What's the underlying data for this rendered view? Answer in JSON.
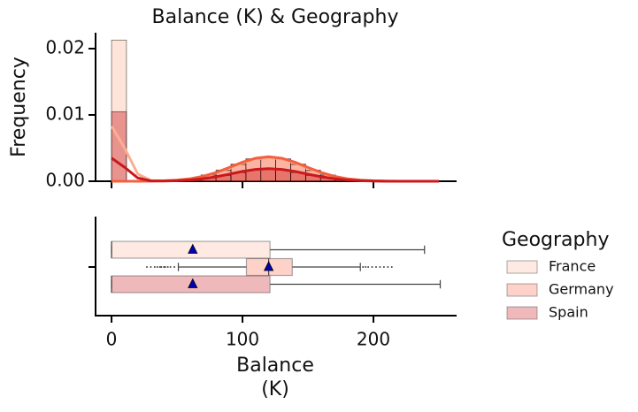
{
  "chart_data": [
    {
      "type": "histogram",
      "title": "Balance (K) & Geography",
      "ylabel": "Frequency",
      "bins": [
        0,
        11.4,
        22.8,
        34.2,
        45.6,
        57,
        68.4,
        79.8,
        91.2,
        102.6,
        114,
        125.4,
        136.8,
        148.2,
        159.6,
        171,
        182.4,
        193.8,
        205.2,
        216.6,
        228,
        239.4,
        250.8
      ],
      "series": [
        {
          "name": "France",
          "color": "#fcbba1",
          "line_color": "#fcae91",
          "values": [
            0.0213,
            0,
            0,
            5e-05,
            0.00018,
            0.00044,
            0.00092,
            0.0016,
            0.0025,
            0.0033,
            0.0036,
            0.0033,
            0.0025,
            0.0016,
            0.00092,
            0.00044,
            0.00018,
            6e-05,
            2e-05,
            0,
            0,
            0
          ],
          "kde": {
            "x": [
              0,
              10,
              20,
              30,
              40,
              50,
              60,
              70,
              80,
              90,
              100,
              110,
              120,
              130,
              140,
              150,
              160,
              170,
              180,
              190,
              200,
              210,
              220,
              230,
              240,
              250
            ],
            "values": [
              0.0083,
              0.005,
              0.0011,
              0.00012,
              6e-05,
              0.00016,
              0.00036,
              0.00073,
              0.00129,
              0.00202,
              0.00278,
              0.00337,
              0.00359,
              0.00337,
              0.00278,
              0.00202,
              0.00129,
              0.00073,
              0.00036,
              0.00016,
              6e-05,
              2e-05,
              0,
              0,
              0,
              0
            ]
          }
        },
        {
          "name": "Germany",
          "color": "#fb6a4a",
          "line_color": "#f4603f",
          "values": [
            0,
            0,
            1e-05,
            5e-05,
            0.00019,
            0.00045,
            0.00095,
            0.0017,
            0.0026,
            0.0034,
            0.0037,
            0.0034,
            0.0026,
            0.0017,
            0.00095,
            0.00045,
            0.00019,
            6e-05,
            2e-05,
            0,
            0,
            0
          ],
          "kde": {
            "x": [
              0,
              10,
              20,
              30,
              40,
              50,
              60,
              70,
              80,
              90,
              100,
              110,
              120,
              130,
              140,
              150,
              160,
              170,
              180,
              190,
              200,
              210,
              220,
              230,
              240,
              250
            ],
            "values": [
              0,
              0,
              0,
              2e-05,
              6e-05,
              0.00016,
              0.00037,
              0.00075,
              0.00133,
              0.00208,
              0.00287,
              0.00347,
              0.0037,
              0.00347,
              0.00287,
              0.00208,
              0.00133,
              0.00075,
              0.00037,
              0.00016,
              6e-05,
              2e-05,
              0,
              0,
              0,
              0
            ]
          }
        },
        {
          "name": "Spain",
          "color": "#cb181d",
          "line_color": "#cb181d",
          "values": [
            0.0105,
            0,
            0,
            2e-05,
            0.0001,
            0.00023,
            0.00049,
            0.00087,
            0.0013,
            0.0017,
            0.0019,
            0.0017,
            0.0013,
            0.00087,
            0.00049,
            0.00023,
            0.0001,
            3e-05,
            1e-05,
            0,
            0,
            0
          ],
          "kde": {
            "x": [
              0,
              10,
              20,
              30,
              40,
              50,
              60,
              70,
              80,
              90,
              100,
              110,
              120,
              130,
              140,
              150,
              160,
              170,
              180,
              190,
              200,
              210,
              220,
              230,
              240,
              250
            ],
            "values": [
              0.0035,
              0.0021,
              0.0005,
              5e-05,
              3e-05,
              8e-05,
              0.00019,
              0.00039,
              0.00068,
              0.00107,
              0.00148,
              0.00178,
              0.0019,
              0.00178,
              0.00148,
              0.00107,
              0.00068,
              0.00039,
              0.00019,
              8e-05,
              3e-05,
              0,
              0,
              0,
              0,
              0
            ]
          }
        }
      ],
      "xlim": [
        -12.2,
        263.5
      ],
      "xticks": [
        0,
        100,
        200
      ],
      "ylim": [
        0,
        0.0224
      ],
      "yticks": [
        {
          "value": 0,
          "label": "0.00"
        },
        {
          "value": 0.01,
          "label": "0.01"
        },
        {
          "value": 0.02,
          "label": "0.02"
        }
      ]
    },
    {
      "type": "box",
      "xlabel": [
        "Balance",
        "(K)"
      ],
      "xlim": [
        -12.2,
        263.5
      ],
      "xticks": [
        0,
        100,
        200
      ],
      "mean_color": "#0000b0",
      "legend": {
        "title": "Geography",
        "position": "outside right"
      },
      "series": [
        {
          "color": "#fcbba1",
          "whislo": 0,
          "q1": 0,
          "median": 0,
          "q3": 121,
          "whishi": 239,
          "mean": 62,
          "fliers": []
        },
        {
          "color": "#fb6a4a",
          "whislo": 51,
          "q1": 103,
          "median": 120,
          "q3": 138,
          "whishi": 190,
          "mean": 120,
          "fliers": [
            27,
            30,
            33,
            35,
            37,
            38,
            40,
            41,
            43,
            45,
            48,
            192,
            194,
            196,
            199,
            202,
            205,
            208,
            211,
            214
          ]
        },
        {
          "color": "#cb181d",
          "whislo": 0,
          "q1": 0,
          "median": 0,
          "q3": 121,
          "whishi": 251,
          "mean": 62,
          "fliers": []
        }
      ]
    }
  ]
}
